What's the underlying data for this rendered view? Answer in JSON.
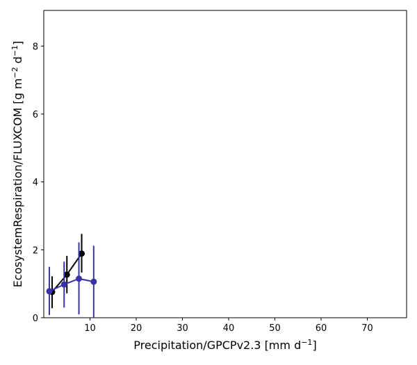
{
  "chart_data": {
    "type": "line",
    "xlabel": "Precipitation/GPCPv2.3 [mm d$^{-1}$]",
    "xlabel_text": "Precipitation/GPCPv2.3 [mm d",
    "xlabel_sup": "−1",
    "xlabel_tail": "]",
    "ylabel": "EcosystemRespiration/FLUXCOM [g m$^{-2}$ d$^{-1}$]",
    "ylabel_parts": [
      "EcosystemRespiration/FLUXCOM [g m",
      "−2",
      " d",
      "−1",
      "]"
    ],
    "xlim": [
      0,
      78.5
    ],
    "ylim": [
      0,
      9.05
    ],
    "xticks": [
      10,
      20,
      30,
      40,
      50,
      60,
      70
    ],
    "yticks": [
      0,
      2,
      4,
      6,
      8
    ],
    "grid": false,
    "series": [
      {
        "color": "#000000",
        "x": [
          1.8,
          5.0,
          8.2
        ],
        "y": [
          0.76,
          1.27,
          1.89
        ],
        "err_low": [
          0.28,
          0.72,
          1.33
        ],
        "err_high": [
          1.22,
          1.82,
          2.47
        ]
      },
      {
        "color": "#3a32a8",
        "x": [
          1.2,
          4.4,
          7.6,
          10.8
        ],
        "y": [
          0.78,
          0.98,
          1.15,
          1.06
        ],
        "err_low": [
          0.08,
          0.3,
          0.1,
          0.0
        ],
        "err_high": [
          1.5,
          1.65,
          2.22,
          2.12
        ]
      }
    ]
  }
}
